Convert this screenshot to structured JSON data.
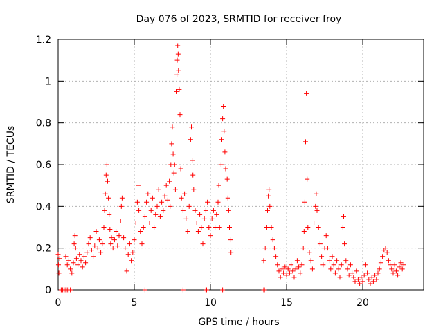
{
  "chart_data": {
    "type": "scatter",
    "title": "Day 076 of 2023, SRMTID for receiver froy",
    "xlabel": "GPS time / hours",
    "ylabel": "SRMTID / TECUs",
    "xlim": [
      0,
      24
    ],
    "ylim": [
      0,
      1.2
    ],
    "x_ticks": [
      0,
      5,
      10,
      15,
      20
    ],
    "x_tick_labels": [
      "0",
      "5",
      "10",
      "15",
      "20"
    ],
    "y_ticks": [
      0,
      0.2,
      0.4,
      0.6,
      0.8,
      1.0,
      1.2
    ],
    "y_tick_labels": [
      "0",
      "0.2",
      "0.4",
      "0.6",
      "0.8",
      "1",
      "1.2"
    ],
    "grid": true,
    "marker": "+",
    "color": "#ff0000",
    "series": [
      {
        "name": "SRMTID",
        "points": [
          [
            0.0,
            0.17
          ],
          [
            0.02,
            0.12
          ],
          [
            0.05,
            0.08
          ],
          [
            0.1,
            0.15
          ],
          [
            0.2,
            0.0
          ],
          [
            0.3,
            0.0
          ],
          [
            0.4,
            0.0
          ],
          [
            0.5,
            0.0
          ],
          [
            0.6,
            0.0
          ],
          [
            0.7,
            0.0
          ],
          [
            0.8,
            0.0
          ],
          [
            0.5,
            0.16
          ],
          [
            0.6,
            0.12
          ],
          [
            0.7,
            0.14
          ],
          [
            0.8,
            0.1
          ],
          [
            0.9,
            0.08
          ],
          [
            1.0,
            0.13
          ],
          [
            1.05,
            0.22
          ],
          [
            1.1,
            0.26
          ],
          [
            1.15,
            0.2
          ],
          [
            1.2,
            0.15
          ],
          [
            1.3,
            0.12
          ],
          [
            1.4,
            0.17
          ],
          [
            1.5,
            0.14
          ],
          [
            1.6,
            0.11
          ],
          [
            1.7,
            0.16
          ],
          [
            1.8,
            0.13
          ],
          [
            1.9,
            0.18
          ],
          [
            2.0,
            0.22
          ],
          [
            2.1,
            0.25
          ],
          [
            2.2,
            0.19
          ],
          [
            2.3,
            0.16
          ],
          [
            2.4,
            0.21
          ],
          [
            2.5,
            0.28
          ],
          [
            2.6,
            0.2
          ],
          [
            2.7,
            0.24
          ],
          [
            2.8,
            0.18
          ],
          [
            2.9,
            0.22
          ],
          [
            3.0,
            0.3
          ],
          [
            3.05,
            0.38
          ],
          [
            3.1,
            0.46
          ],
          [
            3.15,
            0.55
          ],
          [
            3.2,
            0.6
          ],
          [
            3.25,
            0.52
          ],
          [
            3.3,
            0.44
          ],
          [
            3.35,
            0.36
          ],
          [
            3.4,
            0.29
          ],
          [
            3.45,
            0.22
          ],
          [
            3.5,
            0.25
          ],
          [
            3.6,
            0.2
          ],
          [
            3.7,
            0.24
          ],
          [
            3.8,
            0.28
          ],
          [
            3.9,
            0.21
          ],
          [
            4.0,
            0.26
          ],
          [
            4.1,
            0.33
          ],
          [
            4.15,
            0.4
          ],
          [
            4.2,
            0.44
          ],
          [
            4.3,
            0.25
          ],
          [
            4.4,
            0.2
          ],
          [
            4.5,
            0.09
          ],
          [
            4.6,
            0.17
          ],
          [
            4.7,
            0.22
          ],
          [
            4.8,
            0.14
          ],
          [
            4.9,
            0.18
          ],
          [
            5.0,
            0.24
          ],
          [
            5.1,
            0.32
          ],
          [
            5.2,
            0.42
          ],
          [
            5.25,
            0.5
          ],
          [
            5.3,
            0.38
          ],
          [
            5.4,
            0.28
          ],
          [
            5.5,
            0.22
          ],
          [
            5.6,
            0.3
          ],
          [
            5.7,
            0.35
          ],
          [
            5.8,
            0.42
          ],
          [
            5.9,
            0.46
          ],
          [
            6.0,
            0.32
          ],
          [
            6.1,
            0.38
          ],
          [
            6.2,
            0.44
          ],
          [
            6.3,
            0.3
          ],
          [
            6.4,
            0.36
          ],
          [
            6.5,
            0.4
          ],
          [
            6.6,
            0.48
          ],
          [
            6.7,
            0.35
          ],
          [
            6.8,
            0.42
          ],
          [
            6.9,
            0.38
          ],
          [
            7.0,
            0.45
          ],
          [
            7.1,
            0.5
          ],
          [
            7.2,
            0.43
          ],
          [
            7.3,
            0.52
          ],
          [
            7.35,
            0.4
          ],
          [
            7.4,
            0.6
          ],
          [
            7.45,
            0.7
          ],
          [
            7.5,
            0.78
          ],
          [
            7.55,
            0.65
          ],
          [
            7.6,
            0.56
          ],
          [
            7.65,
            0.6
          ],
          [
            7.7,
            0.48
          ],
          [
            7.75,
            0.95
          ],
          [
            7.8,
            1.03
          ],
          [
            7.82,
            1.1
          ],
          [
            7.85,
            1.17
          ],
          [
            7.88,
            1.13
          ],
          [
            7.9,
            1.05
          ],
          [
            7.95,
            0.96
          ],
          [
            8.0,
            0.84
          ],
          [
            8.05,
            0.58
          ],
          [
            8.1,
            0.44
          ],
          [
            8.2,
            0.38
          ],
          [
            8.3,
            0.46
          ],
          [
            8.4,
            0.34
          ],
          [
            8.5,
            0.28
          ],
          [
            8.6,
            0.4
          ],
          [
            8.7,
            0.72
          ],
          [
            8.75,
            0.78
          ],
          [
            8.8,
            0.62
          ],
          [
            8.85,
            0.55
          ],
          [
            8.9,
            0.48
          ],
          [
            9.0,
            0.38
          ],
          [
            9.1,
            0.32
          ],
          [
            9.2,
            0.28
          ],
          [
            9.3,
            0.36
          ],
          [
            9.4,
            0.3
          ],
          [
            9.5,
            0.22
          ],
          [
            9.6,
            0.34
          ],
          [
            9.7,
            0.38
          ],
          [
            9.8,
            0.42
          ],
          [
            9.9,
            0.3
          ],
          [
            10.0,
            0.26
          ],
          [
            10.1,
            0.34
          ],
          [
            10.2,
            0.38
          ],
          [
            10.3,
            0.3
          ],
          [
            10.4,
            0.36
          ],
          [
            10.5,
            0.42
          ],
          [
            10.55,
            0.5
          ],
          [
            10.6,
            0.3
          ],
          [
            10.7,
            0.6
          ],
          [
            10.75,
            0.72
          ],
          [
            10.8,
            0.82
          ],
          [
            10.85,
            0.88
          ],
          [
            10.9,
            0.76
          ],
          [
            10.95,
            0.66
          ],
          [
            11.0,
            0.58
          ],
          [
            11.1,
            0.53
          ],
          [
            11.15,
            0.44
          ],
          [
            11.2,
            0.38
          ],
          [
            11.25,
            0.3
          ],
          [
            11.3,
            0.24
          ],
          [
            11.35,
            0.18
          ],
          [
            5.7,
            0.0
          ],
          [
            8.2,
            0.0
          ],
          [
            9.7,
            0.0
          ],
          [
            9.75,
            0.0
          ],
          [
            10.8,
            0.0
          ],
          [
            13.5,
            0.0
          ],
          [
            13.55,
            0.0
          ],
          [
            13.5,
            0.14
          ],
          [
            13.6,
            0.2
          ],
          [
            13.7,
            0.3
          ],
          [
            13.75,
            0.38
          ],
          [
            13.8,
            0.45
          ],
          [
            13.85,
            0.48
          ],
          [
            13.9,
            0.4
          ],
          [
            14.0,
            0.3
          ],
          [
            14.1,
            0.24
          ],
          [
            14.2,
            0.2
          ],
          [
            14.3,
            0.16
          ],
          [
            14.4,
            0.12
          ],
          [
            14.5,
            0.09
          ],
          [
            14.6,
            0.06
          ],
          [
            14.7,
            0.1
          ],
          [
            14.8,
            0.08
          ],
          [
            14.9,
            0.11
          ],
          [
            15.0,
            0.07
          ],
          [
            15.1,
            0.1
          ],
          [
            15.2,
            0.08
          ],
          [
            15.3,
            0.12
          ],
          [
            15.4,
            0.09
          ],
          [
            15.5,
            0.06
          ],
          [
            15.6,
            0.1
          ],
          [
            15.7,
            0.14
          ],
          [
            15.8,
            0.11
          ],
          [
            15.9,
            0.08
          ],
          [
            16.0,
            0.12
          ],
          [
            16.1,
            0.2
          ],
          [
            16.15,
            0.28
          ],
          [
            16.2,
            0.42
          ],
          [
            16.25,
            0.71
          ],
          [
            16.3,
            0.94
          ],
          [
            16.35,
            0.53
          ],
          [
            16.4,
            0.3
          ],
          [
            16.5,
            0.18
          ],
          [
            16.6,
            0.14
          ],
          [
            16.7,
            0.1
          ],
          [
            16.8,
            0.32
          ],
          [
            16.9,
            0.4
          ],
          [
            16.95,
            0.46
          ],
          [
            17.0,
            0.38
          ],
          [
            17.1,
            0.3
          ],
          [
            17.2,
            0.22
          ],
          [
            17.3,
            0.16
          ],
          [
            17.4,
            0.12
          ],
          [
            17.5,
            0.2
          ],
          [
            17.6,
            0.26
          ],
          [
            17.7,
            0.2
          ],
          [
            17.8,
            0.14
          ],
          [
            17.9,
            0.1
          ],
          [
            18.0,
            0.16
          ],
          [
            18.1,
            0.12
          ],
          [
            18.2,
            0.08
          ],
          [
            18.3,
            0.14
          ],
          [
            18.4,
            0.1
          ],
          [
            18.5,
            0.06
          ],
          [
            18.6,
            0.12
          ],
          [
            18.7,
            0.3
          ],
          [
            18.75,
            0.35
          ],
          [
            18.8,
            0.22
          ],
          [
            18.9,
            0.14
          ],
          [
            19.0,
            0.1
          ],
          [
            19.1,
            0.07
          ],
          [
            19.2,
            0.12
          ],
          [
            19.3,
            0.08
          ],
          [
            19.4,
            0.06
          ],
          [
            19.5,
            0.04
          ],
          [
            19.6,
            0.09
          ],
          [
            19.7,
            0.05
          ],
          [
            19.8,
            0.03
          ],
          [
            19.9,
            0.06
          ],
          [
            20.0,
            0.04
          ],
          [
            20.1,
            0.07
          ],
          [
            20.2,
            0.12
          ],
          [
            20.3,
            0.08
          ],
          [
            20.4,
            0.05
          ],
          [
            20.5,
            0.03
          ],
          [
            20.6,
            0.06
          ],
          [
            20.7,
            0.04
          ],
          [
            20.8,
            0.07
          ],
          [
            20.9,
            0.05
          ],
          [
            21.0,
            0.08
          ],
          [
            21.1,
            0.1
          ],
          [
            21.2,
            0.13
          ],
          [
            21.3,
            0.16
          ],
          [
            21.4,
            0.19
          ],
          [
            21.5,
            0.2
          ],
          [
            21.6,
            0.18
          ],
          [
            21.7,
            0.14
          ],
          [
            21.8,
            0.12
          ],
          [
            21.9,
            0.1
          ],
          [
            22.0,
            0.08
          ],
          [
            22.1,
            0.12
          ],
          [
            22.2,
            0.09
          ],
          [
            22.3,
            0.07
          ],
          [
            22.4,
            0.11
          ],
          [
            22.5,
            0.13
          ],
          [
            22.6,
            0.1
          ],
          [
            22.7,
            0.12
          ]
        ]
      }
    ]
  }
}
